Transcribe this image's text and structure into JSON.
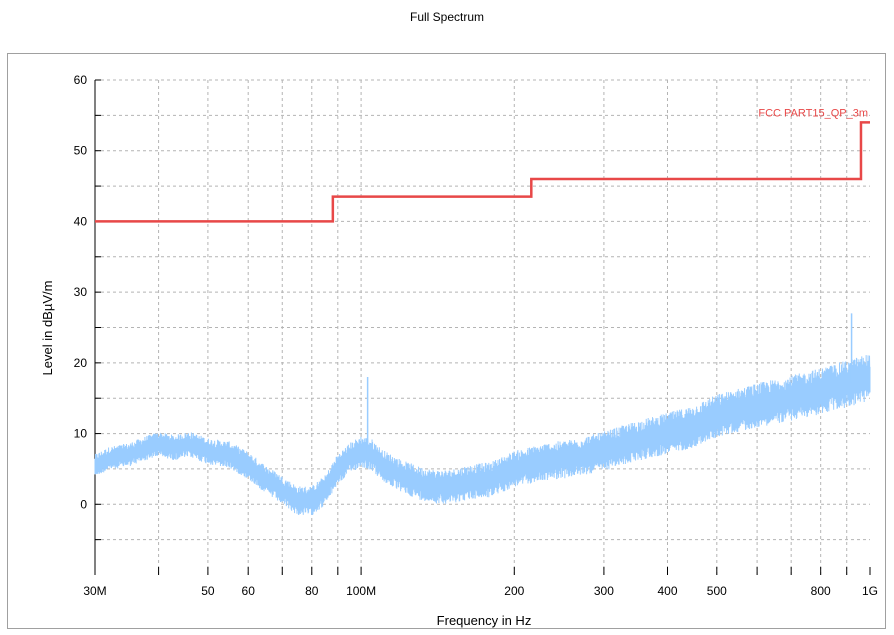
{
  "chart_data": {
    "type": "line",
    "title": "Full Spectrum",
    "xlabel": "Frequency in Hz",
    "ylabel": "Level in dBµV/m",
    "x_scale": "log",
    "xlim": [
      30000000,
      1000000000
    ],
    "ylim": [
      -10,
      60
    ],
    "x_ticks": [
      {
        "value": 30000000,
        "label": "30M"
      },
      {
        "value": 50000000,
        "label": "50"
      },
      {
        "value": 60000000,
        "label": "60"
      },
      {
        "value": 80000000,
        "label": "80"
      },
      {
        "value": 100000000,
        "label": "100M"
      },
      {
        "value": 200000000,
        "label": "200"
      },
      {
        "value": 300000000,
        "label": "300"
      },
      {
        "value": 400000000,
        "label": "400"
      },
      {
        "value": 500000000,
        "label": "500"
      },
      {
        "value": 800000000,
        "label": "800"
      },
      {
        "value": 1000000000,
        "label": "1G"
      }
    ],
    "y_ticks": [
      0,
      10,
      20,
      30,
      40,
      50,
      60
    ],
    "grid": true,
    "series": [
      {
        "name": "FCC PART15_QP_3m",
        "color": "#e84848",
        "step": true,
        "x": [
          30000000,
          88000000,
          88000000,
          216000000,
          216000000,
          960000000,
          960000000,
          1000000000
        ],
        "y": [
          40,
          40,
          43.5,
          43.5,
          46,
          46,
          54,
          54
        ]
      },
      {
        "name": "",
        "color": "#99ccff",
        "noisy": true,
        "x": [
          30000000,
          32000000,
          35000000,
          38000000,
          40000000,
          43000000,
          46000000,
          50000000,
          55000000,
          60000000,
          65000000,
          70000000,
          75000000,
          80000000,
          85000000,
          90000000,
          95000000,
          100000000,
          105000000,
          110000000,
          120000000,
          130000000,
          140000000,
          150000000,
          160000000,
          180000000,
          200000000,
          230000000,
          260000000,
          300000000,
          350000000,
          400000000,
          450000000,
          500000000,
          600000000,
          700000000,
          800000000,
          900000000,
          1000000000
        ],
        "y": [
          5.5,
          6.5,
          7,
          8,
          8.5,
          8,
          8.5,
          7.5,
          7,
          5.5,
          3.5,
          2,
          0.5,
          0.5,
          2,
          5,
          6.5,
          7.5,
          7,
          5.5,
          4,
          3,
          2.5,
          2.5,
          3,
          3.5,
          5,
          6,
          6.5,
          7.5,
          9,
          10,
          11,
          12.5,
          14,
          15,
          16,
          17,
          18
        ],
        "spikes": [
          {
            "x": 103000000,
            "y": 18
          },
          {
            "x": 920000000,
            "y": 27
          }
        ]
      }
    ]
  }
}
